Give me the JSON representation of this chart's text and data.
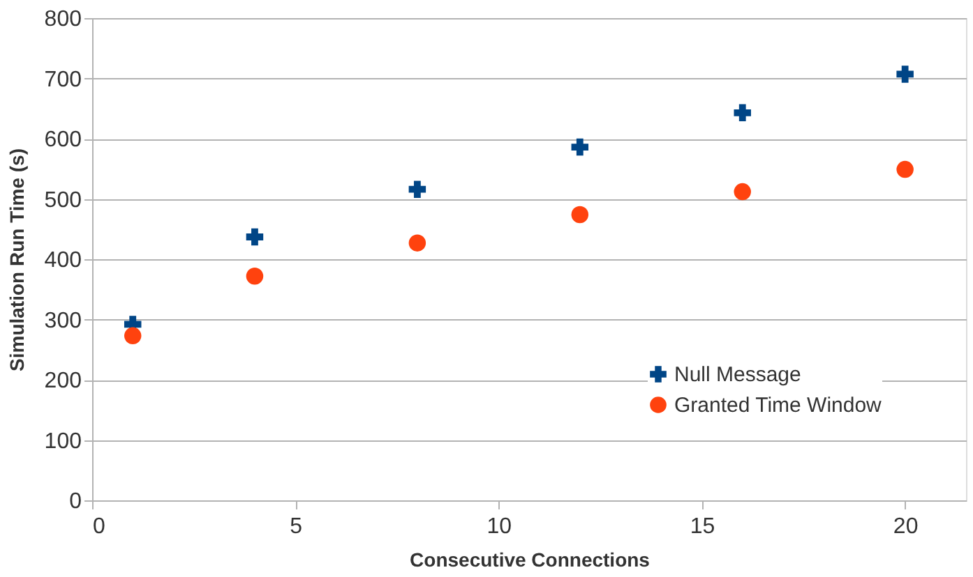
{
  "chart_data": {
    "type": "scatter",
    "xlabel": "Consecutive Connections",
    "ylabel": "Simulation Run Time (s)",
    "x": [
      1,
      4,
      8,
      12,
      16,
      20
    ],
    "series": [
      {
        "name": "Null Message",
        "color": "#004586",
        "marker": "cross",
        "values": [
          292,
          437,
          516,
          586,
          643,
          707
        ]
      },
      {
        "name": "Granted Time Window",
        "color": "#ff420e",
        "marker": "circle",
        "values": [
          273,
          372,
          427,
          474,
          512,
          549
        ]
      }
    ],
    "xlim": [
      0,
      21.5
    ],
    "xticks": [
      0,
      5,
      10,
      15,
      20
    ],
    "ylim": [
      0,
      800
    ],
    "yticks": [
      0,
      100,
      200,
      300,
      400,
      500,
      600,
      700,
      800
    ],
    "grid": "y",
    "legend": "bottom right"
  }
}
